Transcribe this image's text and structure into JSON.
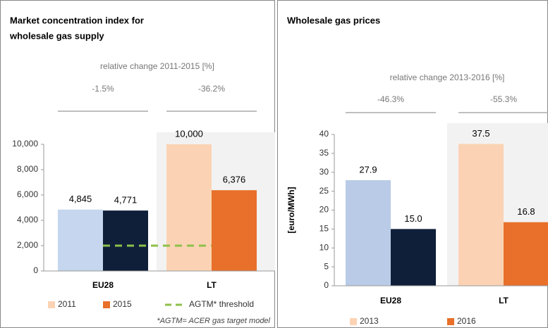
{
  "chart_data": [
    {
      "type": "bar",
      "title": [
        "Market concentration index for",
        "wholesale gas supply"
      ],
      "subtitle": "relative change 2011-2015 [%]",
      "changes": [
        "-1.5%",
        "-36.2%"
      ],
      "categories": [
        "EU28",
        "LT"
      ],
      "series": [
        {
          "name": "2011",
          "color": "#fbd3b4",
          "point_colors": [
            "#c5d6ee",
            "#fbd3b4"
          ],
          "values": [
            4845,
            10000
          ],
          "value_labels": [
            "4,845",
            "10,000"
          ]
        },
        {
          "name": "2015",
          "color": "#e8702a",
          "point_colors": [
            "#0f1f3a",
            "#e8702a"
          ],
          "values": [
            4771,
            6376
          ],
          "value_labels": [
            "4,771",
            "6,376"
          ]
        }
      ],
      "threshold": {
        "name": "AGTM* threshold",
        "value": 2000,
        "color": "#8dc04a"
      },
      "footnote": "*AGTM= ACER gas target model",
      "ylim": [
        0,
        10000
      ],
      "yticks": [
        0,
        {
          "value": 2000,
          "label": "2,000"
        },
        {
          "value": 4000,
          "label": "4,000"
        },
        {
          "value": 6000,
          "label": "6,000"
        },
        {
          "value": 8000,
          "label": "8,000"
        },
        {
          "value": 10000,
          "label": "10,000"
        }
      ]
    },
    {
      "type": "bar",
      "title": [
        "Wholesale gas prices"
      ],
      "subtitle": "relative change 2013-2016 [%]",
      "changes": [
        "-46.3%",
        "-55.3%"
      ],
      "ylabel": "[euro/MWh]",
      "categories": [
        "EU28",
        "LT"
      ],
      "series": [
        {
          "name": "2013",
          "color": "#fbd3b4",
          "point_colors": [
            "#b9cbe6",
            "#fbd3b4"
          ],
          "values": [
            27.9,
            37.5
          ],
          "value_labels": [
            "27.9",
            "37.5"
          ]
        },
        {
          "name": "2016",
          "color": "#e8702a",
          "point_colors": [
            "#0f1f3a",
            "#e8702a"
          ],
          "values": [
            15,
            16.8
          ],
          "value_labels": [
            "15.0",
            "16.8"
          ]
        }
      ],
      "ylim": [
        0,
        40
      ],
      "yticks": [
        0,
        5,
        10,
        15,
        20,
        25,
        30,
        35,
        40
      ]
    }
  ]
}
